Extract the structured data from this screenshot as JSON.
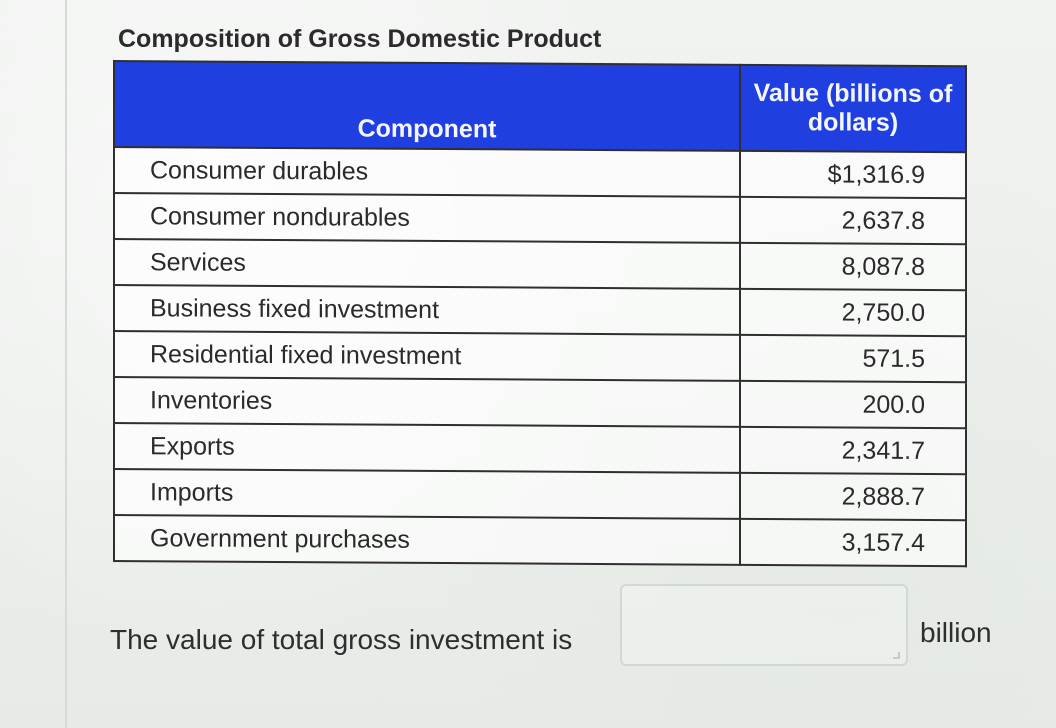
{
  "title": "Composition of Gross Domestic Product",
  "table": {
    "headers": {
      "component": "Component",
      "value": "Value (billions of dollars)"
    },
    "rows": [
      {
        "component": "Consumer durables",
        "value": "$1,316.9"
      },
      {
        "component": "Consumer nondurables",
        "value": "2,637.8"
      },
      {
        "component": "Services",
        "value": "8,087.8"
      },
      {
        "component": "Business fixed investment",
        "value": "2,750.0"
      },
      {
        "component": "Residential fixed investment",
        "value": "571.5"
      },
      {
        "component": "Inventories",
        "value": "200.0"
      },
      {
        "component": "Exports",
        "value": "2,341.7"
      },
      {
        "component": "Imports",
        "value": "2,888.7"
      },
      {
        "component": "Government purchases",
        "value": "3,157.4"
      }
    ]
  },
  "question": {
    "prompt": "The value of total gross investment is",
    "answer_value": "",
    "unit": "billion"
  },
  "colors": {
    "header_blue": "#1f3fe0",
    "border": "#2f2f2f"
  }
}
